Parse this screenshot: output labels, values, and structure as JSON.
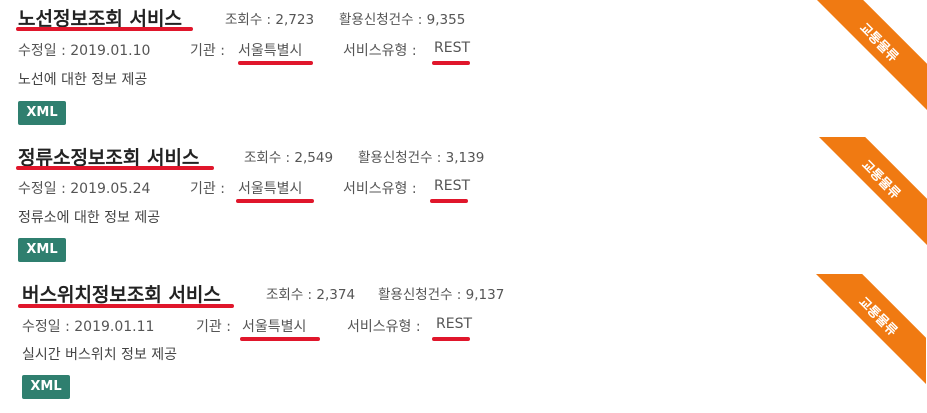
{
  "services": [
    {
      "title": "노선정보조회 서비스",
      "views": "조회수 : 2,723",
      "applications": "활용신청건수 : 9,355",
      "modified": "수정일 : 2019.01.10",
      "org_label": "기관 : ",
      "org_value": "서울특별시",
      "type_label": "서비스유형 : ",
      "type_value": "REST",
      "description": "노선에 대한 정보 제공",
      "format": "XML",
      "category": "교통물류"
    },
    {
      "title": "정류소정보조회 서비스",
      "views": "조회수 : 2,549",
      "applications": "활용신청건수 : 3,139",
      "modified": "수정일 : 2019.05.24",
      "org_label": "기관 : ",
      "org_value": "서울특별시",
      "type_label": "서비스유형 : ",
      "type_value": "REST",
      "description": "정류소에 대한 정보 제공",
      "format": "XML",
      "category": "교통물류"
    },
    {
      "title": "버스위치정보조회 서비스",
      "views": "조회수 : 2,374",
      "applications": "활용신청건수 : 9,137",
      "modified": "수정일 : 2019.01.11",
      "org_label": "기관 : ",
      "org_value": "서울특별시",
      "type_label": "서비스유형 : ",
      "type_value": "REST",
      "description": "실시간 버스위치 정보 제공",
      "format": "XML",
      "category": "교통물류"
    }
  ],
  "colors": {
    "ribbon": "#f07a12",
    "badge": "#2f7f6f",
    "underline": "#e0162b"
  }
}
